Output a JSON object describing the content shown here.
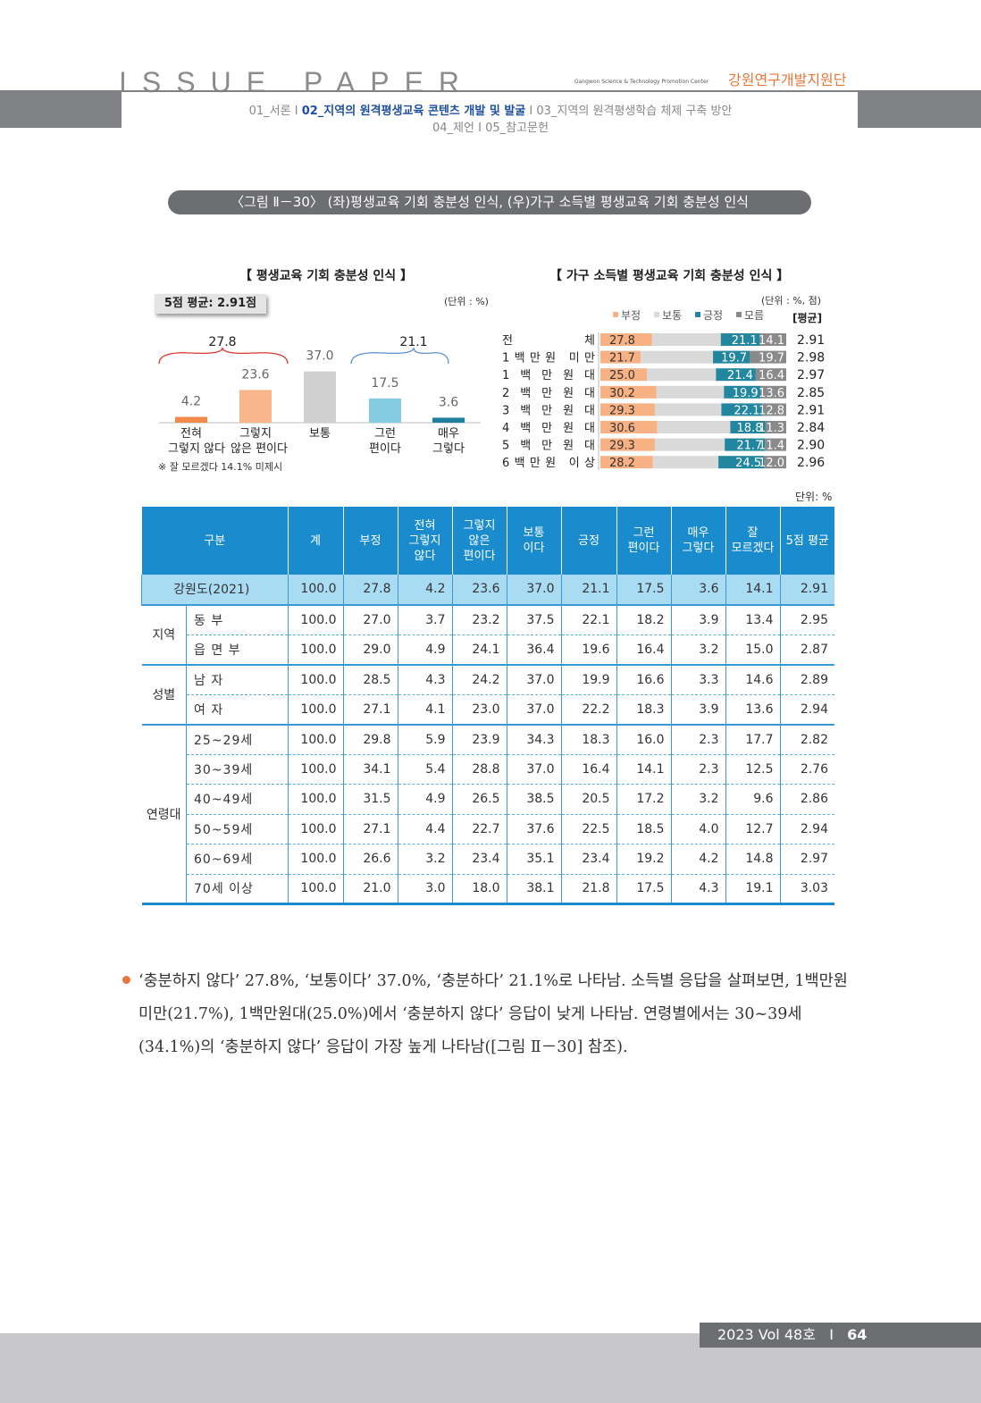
{
  "header": {
    "brand": "ISSUE PAPER",
    "org_en": "Gangwon Science & Technology Promotion Center",
    "org_ko": "강원연구개발지원단",
    "nav": [
      {
        "label": "01_서론",
        "current": false
      },
      {
        "label": "02_지역의 원격평생교육 콘텐츠 개발 및 발굴",
        "current": true
      },
      {
        "label": "03_지역의 원격평생학습 체제 구축 방안",
        "current": false
      },
      {
        "label": "04_제언",
        "current": false
      },
      {
        "label": "05_참고문헌",
        "current": false
      }
    ],
    "sep": "I"
  },
  "figure_title": "〈그림 Ⅱ－30〉 (좌)평생교육 기회 충분성 인식, (우)가구 소득별 평생교육 기회 충분성 인식",
  "chart_data": [
    {
      "type": "bar",
      "title": "【 평생교육 기회 충분성 인식 】",
      "unit": "(단위 : %)",
      "avg_label": "5점 평균: 2.91점",
      "categories": [
        "전혀 그렇지 않다",
        "그렇지 않은 편이다",
        "보통",
        "그런 편이다",
        "매우 그렇다"
      ],
      "category_lines": [
        [
          "전혀",
          "그렇지 않다"
        ],
        [
          "그렇지",
          "않은 편이다"
        ],
        [
          "보통"
        ],
        [
          "그런",
          "편이다"
        ],
        [
          "매우",
          "그렇다"
        ]
      ],
      "values": [
        4.2,
        23.6,
        37.0,
        17.5,
        3.6
      ],
      "value_labels": [
        "4.2",
        "23.6",
        "37.0",
        "17.5",
        "3.6"
      ],
      "colors": [
        "#f08a4b",
        "#f8b68a",
        "#d0d0d0",
        "#84cde0",
        "#1f7f9c"
      ],
      "group_labels": [
        {
          "label": "27.8",
          "color": "#d9362b"
        },
        {
          "label": "21.1",
          "color": "#5b8fd0"
        }
      ],
      "note": "※ 잘 모르겠다 14.1% 미제시"
    },
    {
      "type": "stacked-bar-horizontal",
      "title": "【 가구 소득별 평생교육 기회 충분성 인식 】",
      "unit": "(단위 : %, 점)",
      "avg_header": "[평균]",
      "legend": [
        {
          "name": "부정",
          "color": "#f8b183"
        },
        {
          "name": "보통",
          "color": "#d9d9d9"
        },
        {
          "name": "긍정",
          "color": "#21869e"
        },
        {
          "name": "모름",
          "color": "#8a8a8a"
        }
      ],
      "categories": [
        "전 체",
        "1백만원 미만",
        "1 백 만 원 대",
        "2 백 만 원 대",
        "3 백 만 원 대",
        "4 백 만 원 대",
        "5 백 만 원 대",
        "6백만원 이상"
      ],
      "series": [
        {
          "name": "부정",
          "values": [
            27.8,
            21.7,
            25.0,
            30.2,
            29.3,
            30.6,
            29.3,
            28.2
          ]
        },
        {
          "name": "긍정",
          "values": [
            21.1,
            19.7,
            21.4,
            19.9,
            22.1,
            18.8,
            21.7,
            24.5
          ]
        },
        {
          "name": "모름",
          "values": [
            14.1,
            19.7,
            16.4,
            13.6,
            12.8,
            11.3,
            11.4,
            12.0
          ]
        }
      ],
      "averages": [
        "2.91",
        "2.98",
        "2.97",
        "2.85",
        "2.91",
        "2.84",
        "2.90",
        "2.96"
      ]
    }
  ],
  "table": {
    "unit": "단위: %",
    "headers": [
      "구분",
      "계",
      "부정",
      "전혀 그렇지 않다",
      "그렇지 않은 편이다",
      "보통 이다",
      "긍정",
      "그런 편이다",
      "매우 그렇다",
      "잘 모르겠다",
      "5점 평균"
    ],
    "total_row": {
      "label": "강원도(2021)",
      "values": [
        "100.0",
        "27.8",
        "4.2",
        "23.6",
        "37.0",
        "21.1",
        "17.5",
        "3.6",
        "14.1",
        "2.91"
      ]
    },
    "groups": [
      {
        "label": "지역",
        "rows": [
          {
            "label": "동 부",
            "values": [
              "100.0",
              "27.0",
              "3.7",
              "23.2",
              "37.5",
              "22.1",
              "18.2",
              "3.9",
              "13.4",
              "2.95"
            ]
          },
          {
            "label": "읍 면 부",
            "values": [
              "100.0",
              "29.0",
              "4.9",
              "24.1",
              "36.4",
              "19.6",
              "16.4",
              "3.2",
              "15.0",
              "2.87"
            ]
          }
        ]
      },
      {
        "label": "성별",
        "rows": [
          {
            "label": "남 자",
            "values": [
              "100.0",
              "28.5",
              "4.3",
              "24.2",
              "37.0",
              "19.9",
              "16.6",
              "3.3",
              "14.6",
              "2.89"
            ]
          },
          {
            "label": "여 자",
            "values": [
              "100.0",
              "27.1",
              "4.1",
              "23.0",
              "37.0",
              "22.2",
              "18.3",
              "3.9",
              "13.6",
              "2.94"
            ]
          }
        ]
      },
      {
        "label": "연령대",
        "rows": [
          {
            "label": "25~29세",
            "values": [
              "100.0",
              "29.8",
              "5.9",
              "23.9",
              "34.3",
              "18.3",
              "16.0",
              "2.3",
              "17.7",
              "2.82"
            ]
          },
          {
            "label": "30~39세",
            "values": [
              "100.0",
              "34.1",
              "5.4",
              "28.8",
              "37.0",
              "16.4",
              "14.1",
              "2.3",
              "12.5",
              "2.76"
            ]
          },
          {
            "label": "40~49세",
            "values": [
              "100.0",
              "31.5",
              "4.9",
              "26.5",
              "38.5",
              "20.5",
              "17.2",
              "3.2",
              "9.6",
              "2.86"
            ]
          },
          {
            "label": "50~59세",
            "values": [
              "100.0",
              "27.1",
              "4.4",
              "22.7",
              "37.6",
              "22.5",
              "18.5",
              "4.0",
              "12.7",
              "2.94"
            ]
          },
          {
            "label": "60~69세",
            "values": [
              "100.0",
              "26.6",
              "3.2",
              "23.4",
              "35.1",
              "23.4",
              "19.2",
              "4.2",
              "14.8",
              "2.97"
            ]
          },
          {
            "label": "70세 이상",
            "values": [
              "100.0",
              "21.0",
              "3.0",
              "18.0",
              "38.1",
              "21.8",
              "17.5",
              "4.3",
              "19.1",
              "3.03"
            ]
          }
        ]
      }
    ]
  },
  "paragraph": "‘충분하지 않다’ 27.8%, ‘보통이다’ 37.0%, ‘충분하다’ 21.1%로 나타남. 소득별 응답을 살펴보면, 1백만원 미만(21.7%), 1백만원대(25.0%)에서 ‘충분하지 않다’ 응답이 낮게 나타남. 연령별에서는 30~39세(34.1%)의 ‘충분하지 않다’ 응답이 가장 높게 나타남([그림 Ⅱ－30] 참조).",
  "footer": {
    "issue": "2023 Vol 48호",
    "sep": "I",
    "page": "64"
  }
}
